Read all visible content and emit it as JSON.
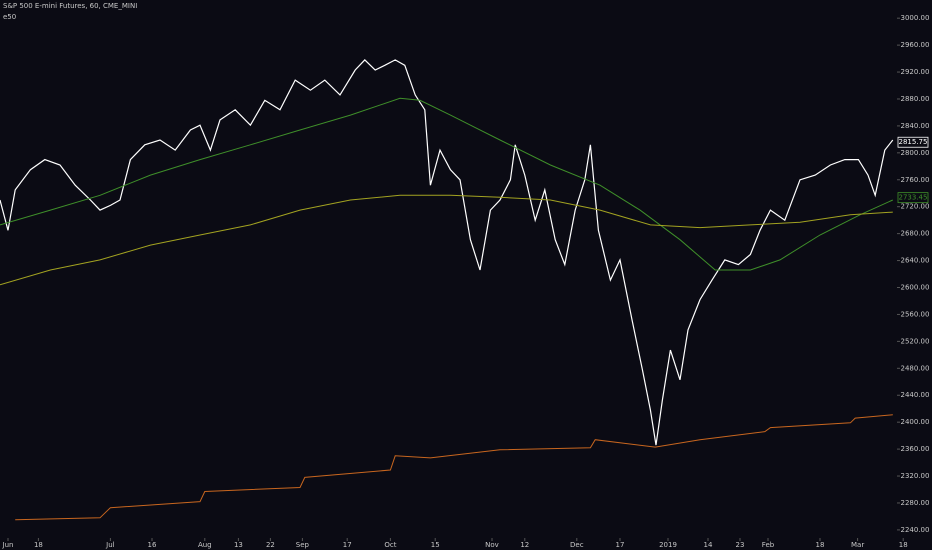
{
  "chart_data": {
    "type": "line",
    "title": "S&P 500 E-mini Futures, 60, CME_MINI",
    "subtitle": "e50",
    "background": "#0b0b14",
    "xlim": [
      0,
      112
    ],
    "ylim": [
      2225,
      3027
    ],
    "xticks": [
      {
        "value": 1,
        "label": "Jun"
      },
      {
        "value": 4.8,
        "label": "18"
      },
      {
        "value": 13.8,
        "label": "Jul"
      },
      {
        "value": 19,
        "label": "16"
      },
      {
        "value": 25.6,
        "label": "Aug"
      },
      {
        "value": 29.8,
        "label": "13"
      },
      {
        "value": 33.8,
        "label": "22"
      },
      {
        "value": 37.8,
        "label": "Sep"
      },
      {
        "value": 43.4,
        "label": "17"
      },
      {
        "value": 48.8,
        "label": "Oct"
      },
      {
        "value": 54.4,
        "label": "15"
      },
      {
        "value": 61.5,
        "label": "Nov"
      },
      {
        "value": 65.6,
        "label": "12"
      },
      {
        "value": 72.1,
        "label": "Dec"
      },
      {
        "value": 77.5,
        "label": "17"
      },
      {
        "value": 83.5,
        "label": "2019"
      },
      {
        "value": 88.5,
        "label": "14"
      },
      {
        "value": 92.5,
        "label": "23"
      },
      {
        "value": 96,
        "label": "Feb"
      },
      {
        "value": 102.5,
        "label": "18"
      },
      {
        "value": 107.2,
        "label": "Mar"
      },
      {
        "value": 112.9,
        "label": "18"
      }
    ],
    "yticks": [
      {
        "value": 2240,
        "label": "2240.00"
      },
      {
        "value": 2280,
        "label": "2280.00"
      },
      {
        "value": 2320,
        "label": "2320.00"
      },
      {
        "value": 2360,
        "label": "2360.00"
      },
      {
        "value": 2400,
        "label": "2400.00"
      },
      {
        "value": 2440,
        "label": "2440.00"
      },
      {
        "value": 2480,
        "label": "2480.00"
      },
      {
        "value": 2520,
        "label": "2520.00"
      },
      {
        "value": 2560,
        "label": "2560.00"
      },
      {
        "value": 2600,
        "label": "2600.00"
      },
      {
        "value": 2640,
        "label": "2640.00"
      },
      {
        "value": 2680,
        "label": "2680.00"
      },
      {
        "value": 2720,
        "label": "2720.00"
      },
      {
        "value": 2760,
        "label": "2760.00"
      },
      {
        "value": 2800,
        "label": "2800.00"
      },
      {
        "value": 2840,
        "label": "2840.00"
      },
      {
        "value": 2880,
        "label": "2880.00"
      },
      {
        "value": 2920,
        "label": "2920.00"
      },
      {
        "value": 2960,
        "label": "2960.00"
      },
      {
        "value": 3000,
        "label": "3000.00"
      }
    ],
    "series": [
      {
        "color": "#ffffff",
        "x": [
          0,
          1,
          1.9,
          3.8,
          5.6,
          7.5,
          9.4,
          11.3,
          12.5,
          13.8,
          15,
          16.3,
          18.1,
          20,
          21.9,
          23.8,
          25,
          26.3,
          27.5,
          29.4,
          31.3,
          33.1,
          35,
          36.9,
          38.8,
          40.6,
          42.5,
          44.4,
          45.6,
          46.9,
          48.1,
          49.4,
          50.6,
          51.9,
          53.1,
          53.8,
          55,
          56.3,
          57.5,
          58.8,
          60,
          61.3,
          62.5,
          63.8,
          64.4,
          65.6,
          66.9,
          68.1,
          69.4,
          70.6,
          71.9,
          73.1,
          73.8,
          74.8,
          76.3,
          77.5,
          79,
          80.3,
          81.3,
          82,
          82.8,
          83.8,
          85,
          86,
          87.5,
          89,
          90.6,
          92.3,
          93.8,
          95,
          96.3,
          98.1,
          100,
          101.9,
          103.8,
          105.6,
          107.3,
          108.5,
          109.4,
          110.6,
          111.6
        ],
        "values": [
          2730,
          2685,
          2745,
          2775,
          2790,
          2782,
          2752,
          2730,
          2715,
          2722,
          2730,
          2790,
          2812,
          2819,
          2804,
          2834,
          2841,
          2804,
          2849,
          2864,
          2841,
          2878,
          2864,
          2908,
          2893,
          2908,
          2886,
          2923,
          2938,
          2923,
          2930,
          2938,
          2930,
          2886,
          2864,
          2752,
          2804,
          2775,
          2760,
          2671,
          2626,
          2715,
          2730,
          2760,
          2812,
          2767,
          2700,
          2745,
          2671,
          2634,
          2715,
          2760,
          2812,
          2685,
          2611,
          2641,
          2552,
          2478,
          2418,
          2366,
          2433,
          2507,
          2463,
          2537,
          2582,
          2611,
          2641,
          2634,
          2649,
          2685,
          2715,
          2700,
          2760,
          2767,
          2782,
          2790,
          2790,
          2767,
          2737,
          2804,
          2819
        ]
      },
      {
        "color": "#3f8f2a",
        "x": [
          0,
          6.3,
          12.5,
          18.8,
          25,
          31.3,
          37.5,
          43.8,
          50,
          52.5,
          56.3,
          62.5,
          68.8,
          75,
          80,
          85,
          89.4,
          93.8,
          97.5,
          102.5,
          107.5,
          111.6
        ],
        "values": [
          2693,
          2715,
          2737,
          2767,
          2790,
          2812,
          2834,
          2856,
          2881,
          2878,
          2856,
          2819,
          2782,
          2752,
          2715,
          2671,
          2626,
          2626,
          2641,
          2678,
          2708,
          2730
        ]
      },
      {
        "color": "#a3a321",
        "x": [
          0,
          6.3,
          12.5,
          18.8,
          25,
          31.3,
          37.5,
          43.8,
          50,
          56.3,
          62.5,
          68.8,
          75,
          81.3,
          87.5,
          93.8,
          100,
          106.3,
          111.6
        ],
        "values": [
          2604,
          2626,
          2641,
          2663,
          2678,
          2693,
          2715,
          2730,
          2737,
          2737,
          2734,
          2730,
          2715,
          2693,
          2689,
          2693,
          2697,
          2708,
          2712
        ]
      },
      {
        "color": "#c8661f",
        "x": [
          1.9,
          12.5,
          13.8,
          25,
          25.6,
          37.5,
          38.1,
          48.8,
          49.4,
          53.8,
          62.5,
          73.8,
          74.4,
          81.9,
          87.5,
          95.6,
          96.3,
          106.3,
          106.9,
          111.6
        ],
        "values": [
          2255,
          2258,
          2273,
          2282,
          2297,
          2303,
          2318,
          2329,
          2350,
          2347,
          2359,
          2362,
          2374,
          2363,
          2374,
          2386,
          2392,
          2399,
          2406,
          2411
        ]
      }
    ],
    "price_labels": [
      {
        "value": 2815.75,
        "label": "2815.75",
        "color": "#ffffff"
      },
      {
        "value": 2733.45,
        "label": "2733.45",
        "color": "#3f8f2a"
      }
    ]
  }
}
